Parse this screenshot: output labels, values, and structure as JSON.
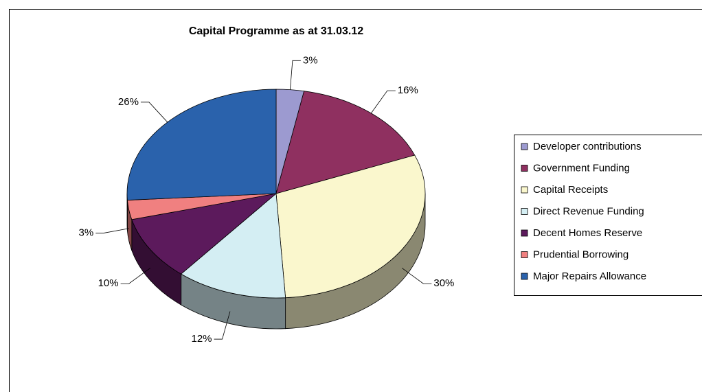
{
  "chart_data": {
    "type": "pie",
    "title": "Capital Programme as at 31.03.12",
    "categories": [
      "Developer contributions",
      "Government Funding",
      "Capital Receipts",
      "Direct Revenue Funding",
      "Decent Homes Reserve",
      "Prudential Borrowing",
      "Major Repairs Allowance"
    ],
    "values": [
      3,
      16,
      30,
      12,
      10,
      3,
      26
    ],
    "value_labels": [
      "3%",
      "16%",
      "30%",
      "12%",
      "10%",
      "3%",
      "26%"
    ],
    "colors": [
      "#9c9ad0",
      "#8f3060",
      "#faf7cd",
      "#d4eef3",
      "#5c1a5c",
      "#f08080",
      "#2a62ac"
    ],
    "legend": "right"
  }
}
